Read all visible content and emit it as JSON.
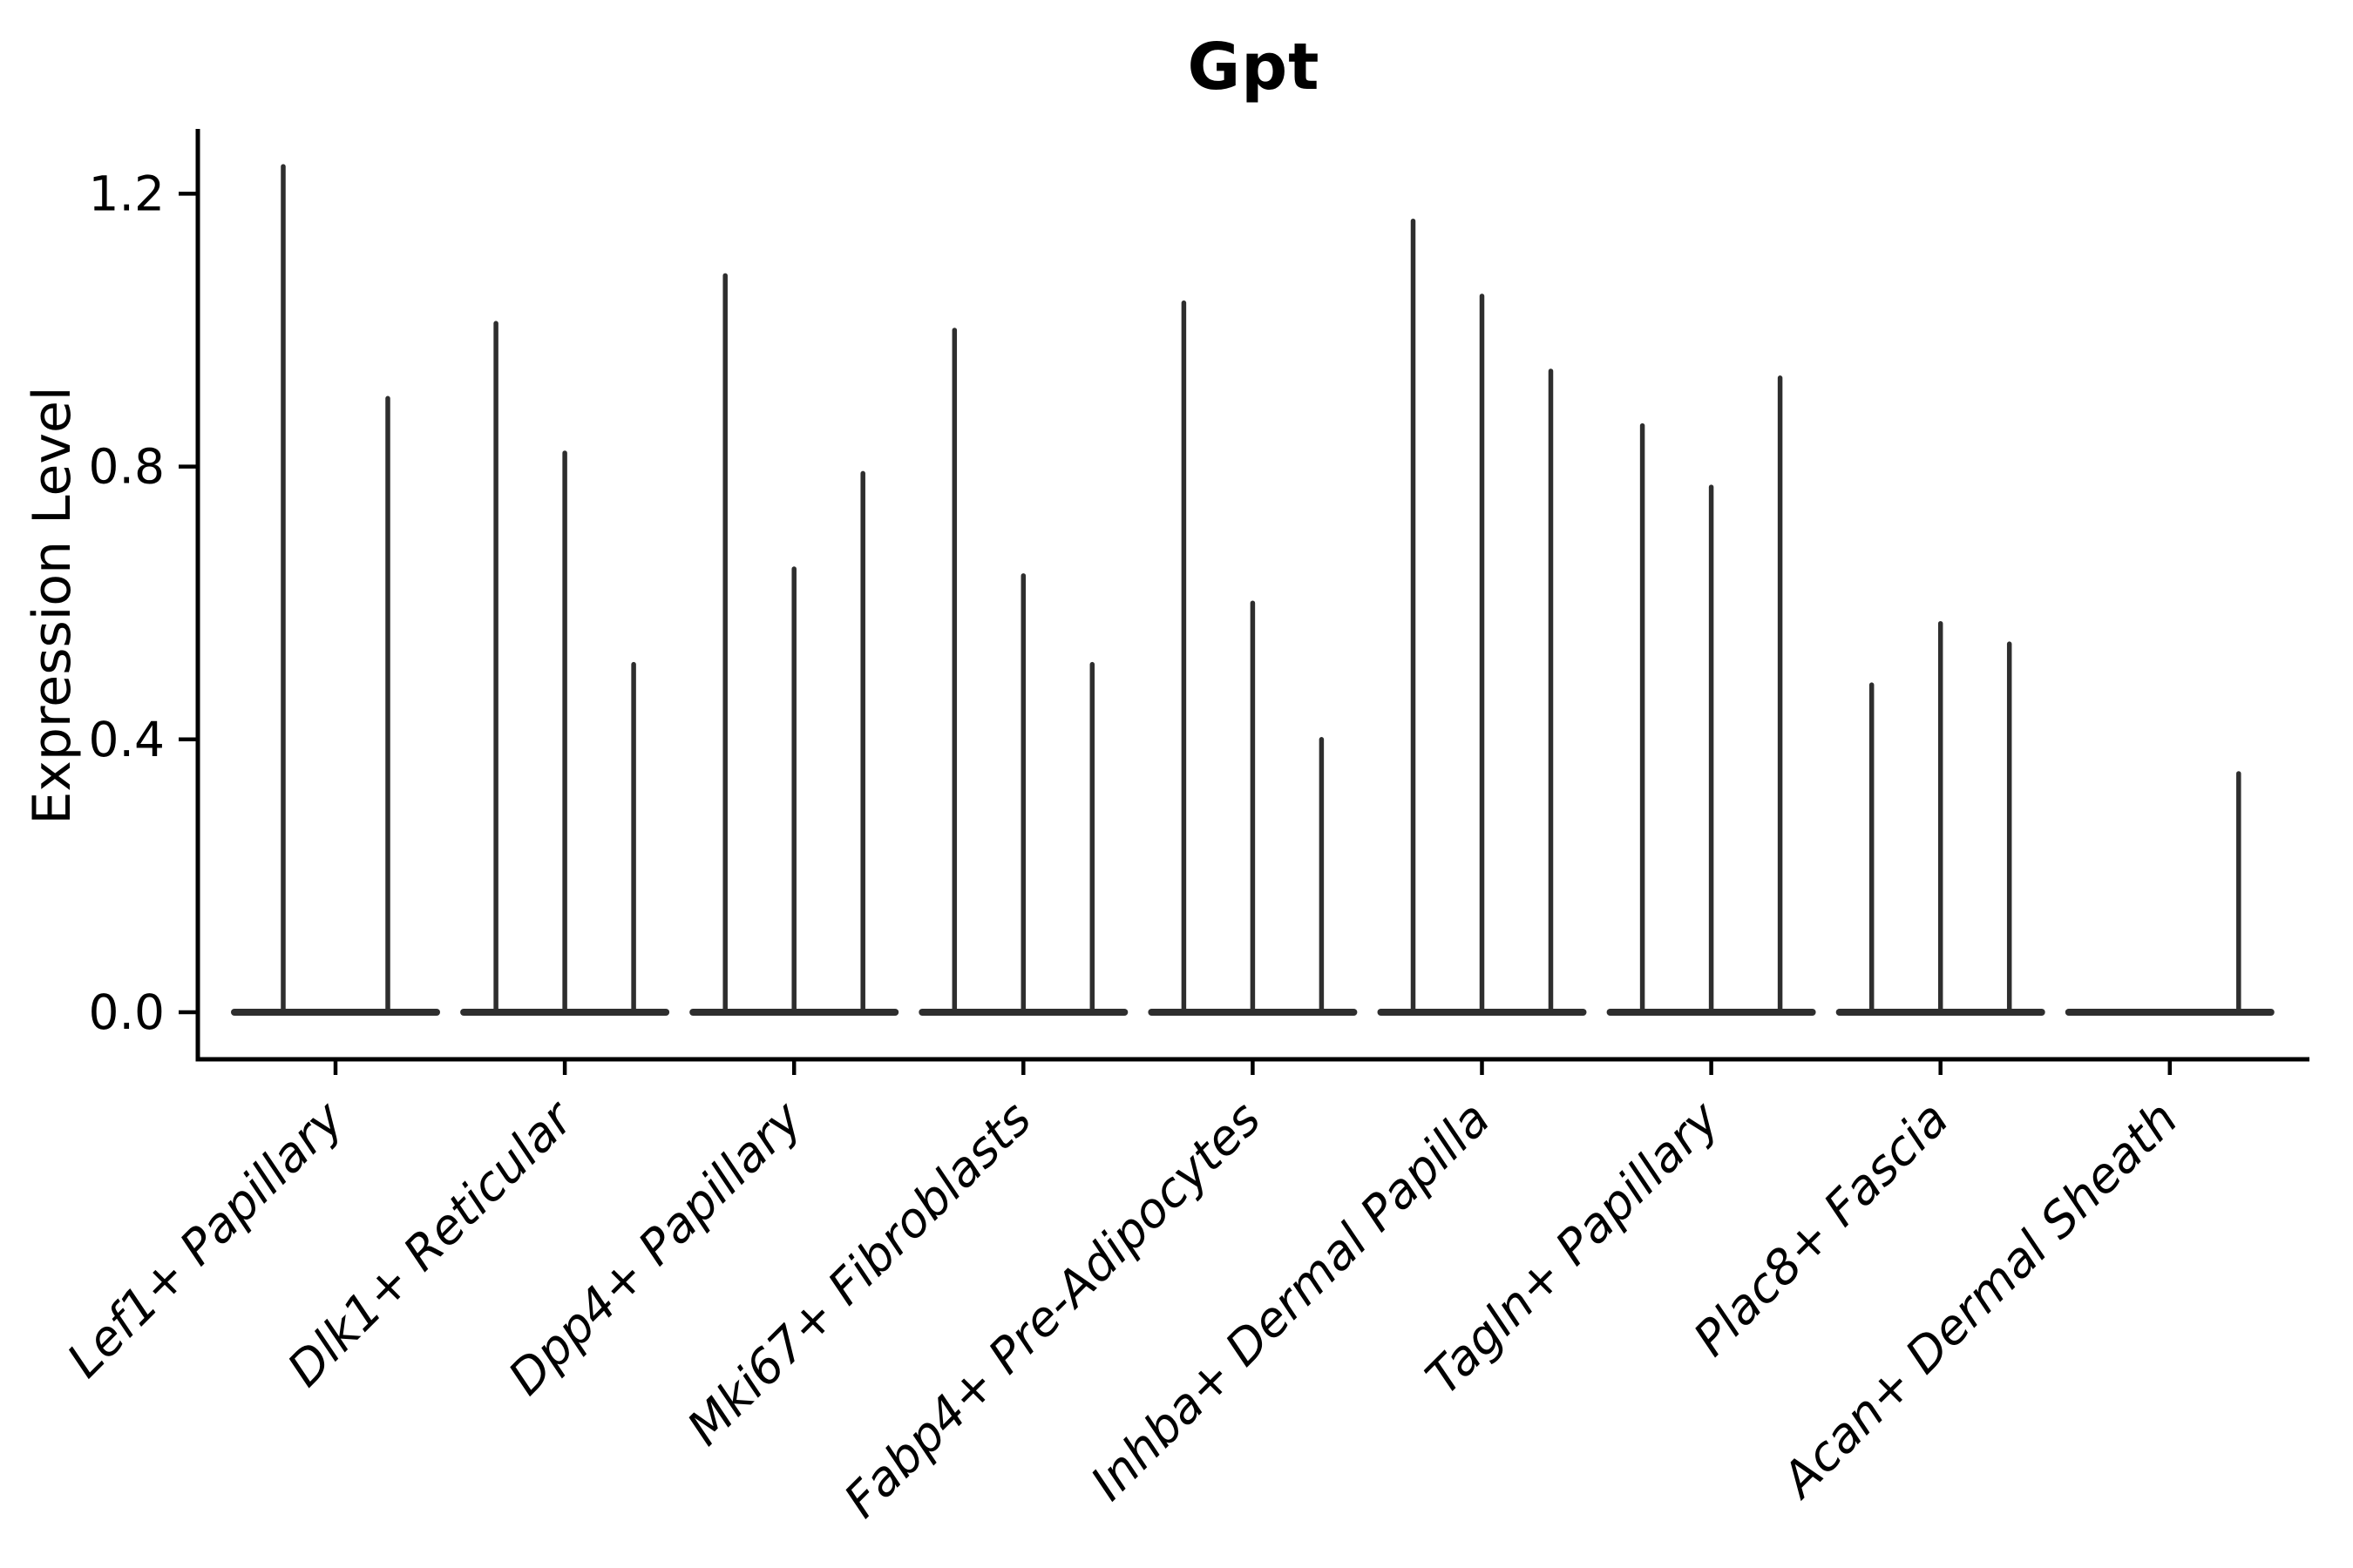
{
  "page": {
    "background_color": "#ffffff",
    "ink_color": "#2e2e2e",
    "axis_color": "#000000"
  },
  "chart_data": {
    "type": "violin",
    "title": "Gpt",
    "ylabel": "Expression Level",
    "xlabel": "",
    "yticks": [
      "0.0",
      "0.4",
      "0.8",
      "1.2"
    ],
    "ylim": [
      -0.07,
      1.3
    ],
    "grid": false,
    "legend": "none",
    "description": "Zero-inflated expression violins: each violin is a wide flat body at 0 with a thin spike up to its maximum expression value",
    "categories": [
      {
        "label": "Lef1+ Papillary",
        "violin_max": [
          1.24,
          0.9
        ]
      },
      {
        "label": "Dlk1+ Reticular",
        "violin_max": [
          1.01,
          0.82,
          0.51
        ]
      },
      {
        "label": "Dpp4+ Papillary",
        "violin_max": [
          1.08,
          0.65,
          0.79
        ]
      },
      {
        "label": "Mki67+ Fibroblasts",
        "violin_max": [
          1.0,
          0.64,
          0.51
        ]
      },
      {
        "label": "Fabp4+ Pre-Adipocytes",
        "violin_max": [
          1.04,
          0.6,
          0.4
        ]
      },
      {
        "label": "Inhba+ Dermal Papilla",
        "violin_max": [
          1.16,
          1.05,
          0.94
        ]
      },
      {
        "label": "Tagln+ Papillary",
        "violin_max": [
          0.86,
          0.77,
          0.93
        ]
      },
      {
        "label": "Plac8+ Fascia",
        "violin_max": [
          0.48,
          0.57,
          0.54
        ]
      },
      {
        "label": "Acan+ Dermal Sheath",
        "violin_max": [
          0,
          0,
          0.35
        ]
      }
    ]
  }
}
